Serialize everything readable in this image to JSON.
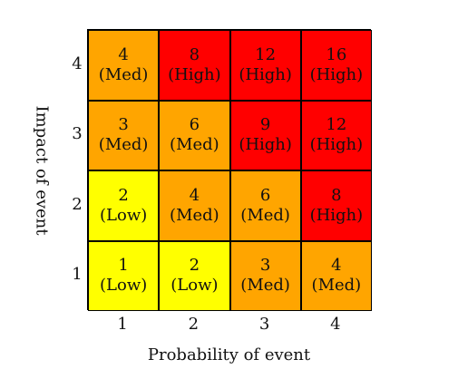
{
  "colors": {
    "Low": "#ffff00",
    "Med": "#ffa500",
    "High": "#ff0000"
  },
  "chart_data": {
    "type": "heatmap",
    "title": "",
    "xlabel": "Probability of event",
    "ylabel": "Impact of event",
    "x_categories": [
      "1",
      "2",
      "3",
      "4"
    ],
    "y_categories": [
      "1",
      "2",
      "3",
      "4"
    ],
    "cells": [
      {
        "x": 1,
        "y": 4,
        "value": "4",
        "level": "(Med)",
        "cls": "Med"
      },
      {
        "x": 2,
        "y": 4,
        "value": "8",
        "level": "(High)",
        "cls": "High"
      },
      {
        "x": 3,
        "y": 4,
        "value": "12",
        "level": "(High)",
        "cls": "High"
      },
      {
        "x": 4,
        "y": 4,
        "value": "16",
        "level": "(High)",
        "cls": "High"
      },
      {
        "x": 1,
        "y": 3,
        "value": "3",
        "level": "(Med)",
        "cls": "Med"
      },
      {
        "x": 2,
        "y": 3,
        "value": "6",
        "level": "(Med)",
        "cls": "Med"
      },
      {
        "x": 3,
        "y": 3,
        "value": "9",
        "level": "(High)",
        "cls": "High"
      },
      {
        "x": 4,
        "y": 3,
        "value": "12",
        "level": "(High)",
        "cls": "High"
      },
      {
        "x": 1,
        "y": 2,
        "value": "2",
        "level": "(Low)",
        "cls": "Low"
      },
      {
        "x": 2,
        "y": 2,
        "value": "4",
        "level": "(Med)",
        "cls": "Med"
      },
      {
        "x": 3,
        "y": 2,
        "value": "6",
        "level": "(Med)",
        "cls": "Med"
      },
      {
        "x": 4,
        "y": 2,
        "value": "8",
        "level": "(High)",
        "cls": "High"
      },
      {
        "x": 1,
        "y": 1,
        "value": "1",
        "level": "(Low)",
        "cls": "Low"
      },
      {
        "x": 2,
        "y": 1,
        "value": "2",
        "level": "(Low)",
        "cls": "Low"
      },
      {
        "x": 3,
        "y": 1,
        "value": "3",
        "level": "(Med)",
        "cls": "Med"
      },
      {
        "x": 4,
        "y": 1,
        "value": "4",
        "level": "(Med)",
        "cls": "Med"
      }
    ]
  }
}
